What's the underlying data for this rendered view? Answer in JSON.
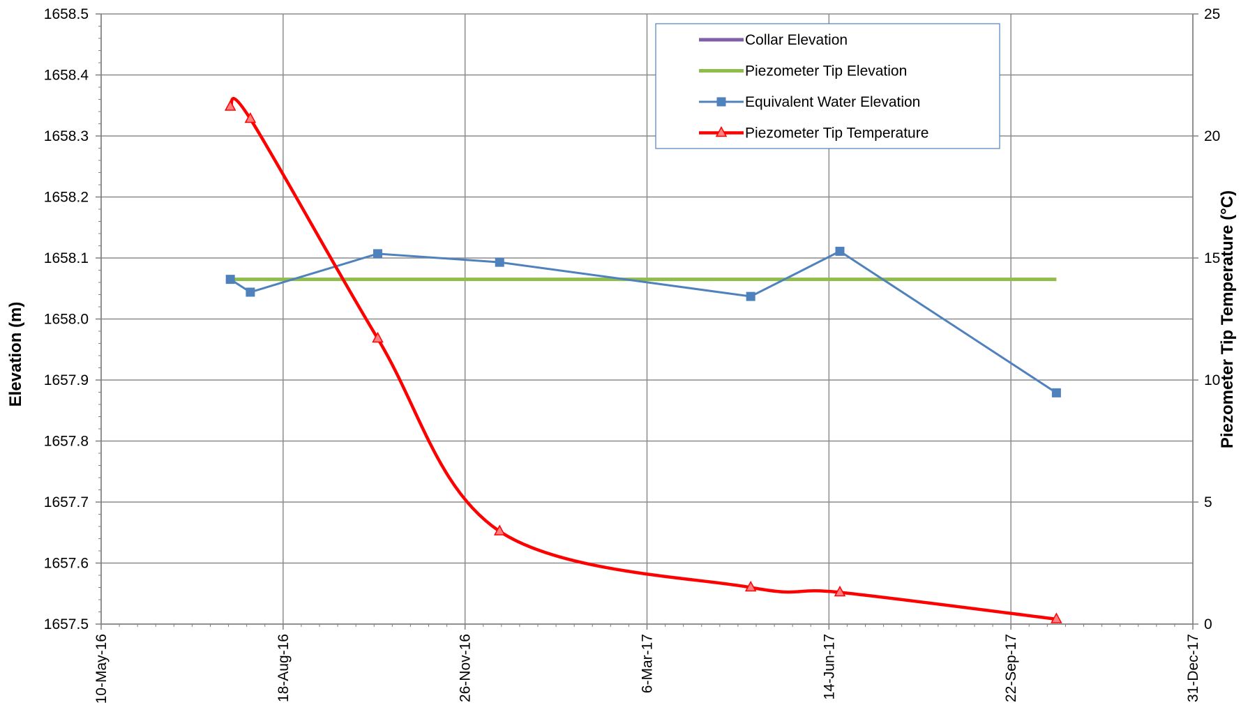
{
  "chart_data": {
    "type": "line",
    "x_axis": {
      "type": "date",
      "min": "2016-05-10",
      "max": "2017-12-31",
      "ticks": [
        "2016-05-10",
        "2016-08-18",
        "2016-11-26",
        "2017-03-06",
        "2017-06-14",
        "2017-09-22",
        "2017-12-31"
      ],
      "tick_labels": [
        "10-May-16",
        "18-Aug-16",
        "26-Nov-16",
        "6-Mar-17",
        "14-Jun-17",
        "22-Sep-17",
        "31-Dec-17"
      ],
      "label": ""
    },
    "y_left": {
      "label": "Elevation (m)",
      "min": 1657.5,
      "max": 1658.5,
      "ticks": [
        1657.5,
        1657.6,
        1657.7,
        1657.8,
        1657.9,
        1658.0,
        1658.1,
        1658.2,
        1658.3,
        1658.4,
        1658.5
      ],
      "tick_labels": [
        "1657.5",
        "1657.6",
        "1657.7",
        "1657.8",
        "1657.9",
        "1658.0",
        "1658.1",
        "1658.2",
        "1658.3",
        "1658.4",
        "1658.5"
      ]
    },
    "y_right": {
      "label": "Piezometer Tip Temperature (°C)",
      "min": 0,
      "max": 25,
      "ticks": [
        0,
        5,
        10,
        15,
        20,
        25
      ],
      "tick_labels": [
        "0",
        "5",
        "10",
        "15",
        "20",
        "25"
      ]
    },
    "grid": true,
    "legend": {
      "position": "top-right"
    },
    "series": [
      {
        "name": "Collar Elevation",
        "axis": "left",
        "color": "#7f5fa8",
        "marker": "none",
        "points": []
      },
      {
        "name": "Piezometer Tip Elevation",
        "axis": "left",
        "color": "#8fbc4a",
        "marker": "none",
        "points": [
          [
            "2016-07-20",
            1658.065
          ],
          [
            "2017-10-17",
            1658.065
          ]
        ]
      },
      {
        "name": "Equivalent Water Elevation",
        "axis": "left",
        "color": "#4f81bd",
        "marker": "square",
        "points": [
          [
            "2016-07-20",
            1658.065
          ],
          [
            "2016-07-31",
            1658.044
          ],
          [
            "2016-10-09",
            1658.107
          ],
          [
            "2016-12-15",
            1658.093
          ],
          [
            "2017-05-02",
            1658.037
          ],
          [
            "2017-06-20",
            1658.111
          ],
          [
            "2017-10-17",
            1657.879
          ]
        ]
      },
      {
        "name": "Piezometer Tip Temperature",
        "axis": "right",
        "color": "#ff0000",
        "marker": "triangle",
        "points": [
          [
            "2016-07-20",
            21.2
          ],
          [
            "2016-07-31",
            20.7
          ],
          [
            "2016-10-09",
            11.7
          ],
          [
            "2016-12-15",
            3.8
          ],
          [
            "2017-05-02",
            1.5
          ],
          [
            "2017-06-20",
            1.3
          ],
          [
            "2017-10-17",
            0.2
          ]
        ]
      }
    ]
  }
}
